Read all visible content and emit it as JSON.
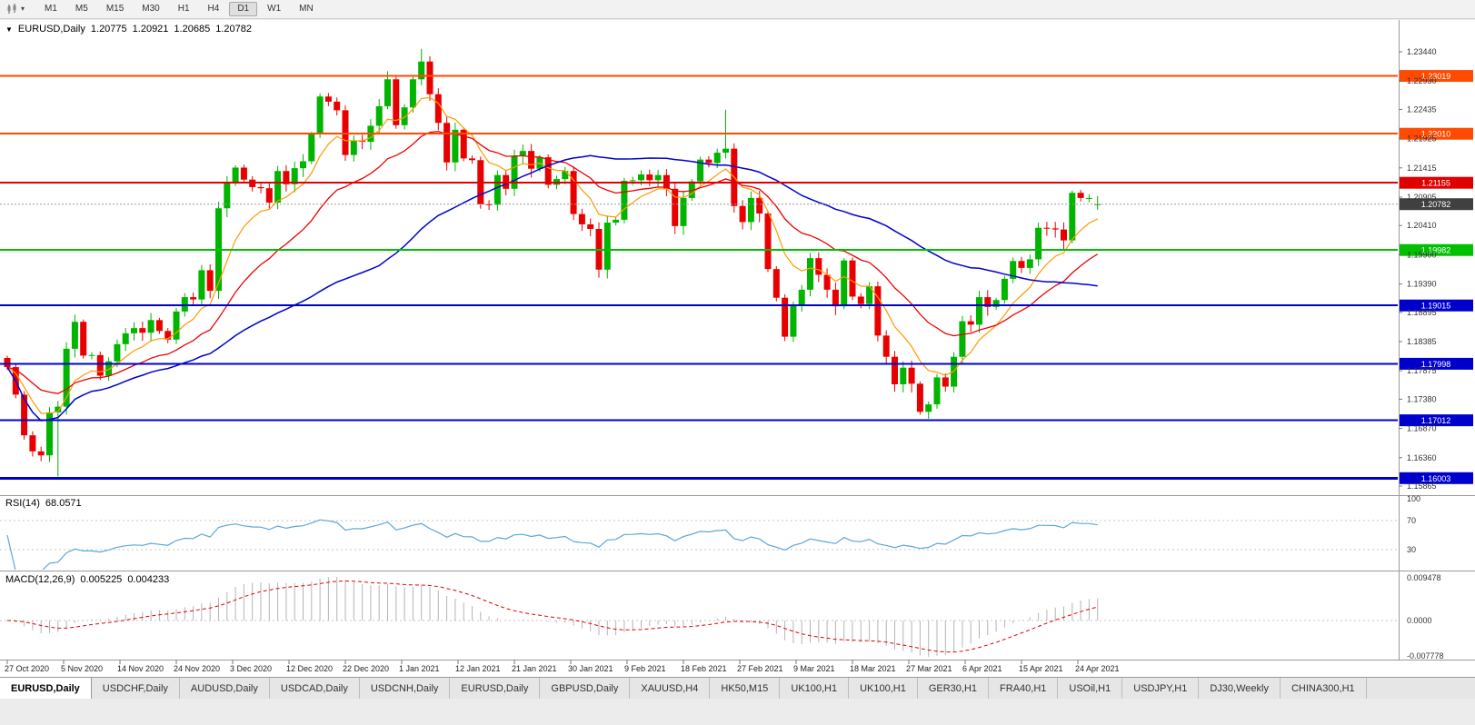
{
  "toolbar": {
    "timeframes": [
      "M1",
      "M5",
      "M15",
      "M30",
      "H1",
      "H4",
      "D1",
      "W1",
      "MN"
    ],
    "active_timeframe": "D1"
  },
  "icons": {
    "collapse": "▼",
    "caret": "▾"
  },
  "chart": {
    "symbol_period": "EURUSD,Daily",
    "open": "1.20775",
    "high": "1.20921",
    "low": "1.20685",
    "close": "1.20782"
  },
  "indicators": {
    "rsi": {
      "label": "RSI(14)",
      "value": "68.0571",
      "axis": [
        "100",
        "70",
        "30"
      ],
      "levels": [
        70,
        30
      ],
      "line_color": "#5ba7d9"
    },
    "macd": {
      "label": "MACD(12,26,9)",
      "value_main": "0.005225",
      "value_signal": "0.004233",
      "axis_top": "0.009478",
      "axis_zero": "0.0000",
      "axis_bottom": "-0.007778",
      "histogram_color": "#b4b4b4",
      "signal_color": "#e00000"
    }
  },
  "chart_data": {
    "type": "candlestick",
    "title": "EURUSD Daily",
    "symbol": "EURUSD",
    "timeframe": "Daily",
    "ylim": [
      1.15865,
      1.2344
    ],
    "grid": false,
    "price_axis": {
      "ticks": [
        "1.23440",
        "1.22930",
        "1.22435",
        "1.21925",
        "1.21415",
        "1.20905",
        "1.20410",
        "1.19900",
        "1.19390",
        "1.18895",
        "1.18385",
        "1.17875",
        "1.17380",
        "1.16870",
        "1.16360",
        "1.15865"
      ],
      "current_label": "1.20782",
      "current_value": 1.20782,
      "current_color": "#404040"
    },
    "levels": [
      {
        "label": "1.23019",
        "value": 1.23019,
        "color": "#ff4a00",
        "width": 2
      },
      {
        "label": "1.22010",
        "value": 1.2201,
        "color": "#ff4a00",
        "width": 2
      },
      {
        "label": "1.21155",
        "value": 1.21155,
        "color": "#e00000",
        "width": 2
      },
      {
        "label": "1.19982",
        "value": 1.19982,
        "color": "#00c000",
        "width": 2
      },
      {
        "label": "1.19015",
        "value": 1.19015,
        "color": "#0000cd",
        "width": 2
      },
      {
        "label": "1.17998",
        "value": 1.17998,
        "color": "#0000cd",
        "width": 2
      },
      {
        "label": "1.17012",
        "value": 1.17012,
        "color": "#0000cd",
        "width": 2
      },
      {
        "label": "1.16003",
        "value": 1.16003,
        "color": "#0000cd",
        "width": 3
      }
    ],
    "colors": {
      "up": "#00b400",
      "down": "#e80000"
    },
    "moving_averages": [
      {
        "period": 8,
        "type": "ema",
        "color": "#ff9a00",
        "width": 1.2
      },
      {
        "period": 20,
        "type": "ema",
        "color": "#ee0000",
        "width": 1.3
      },
      {
        "period": 45,
        "type": "sma",
        "color": "#0000cc",
        "width": 1.5
      }
    ],
    "candles": {
      "first_open": 1.181,
      "closes": [
        1.1794,
        1.1746,
        1.1675,
        1.1647,
        1.164,
        1.1715,
        1.1725,
        1.1826,
        1.1873,
        1.1814,
        1.1815,
        1.1779,
        1.1804,
        1.1834,
        1.1853,
        1.1862,
        1.1854,
        1.1876,
        1.1857,
        1.1842,
        1.1891,
        1.1916,
        1.1912,
        1.1963,
        1.1927,
        1.2071,
        1.2115,
        1.2142,
        1.2121,
        1.2108,
        1.2106,
        1.2081,
        1.2136,
        1.2113,
        1.2141,
        1.2153,
        1.22,
        1.2266,
        1.2257,
        1.2242,
        1.2164,
        1.2189,
        1.2187,
        1.2215,
        1.2249,
        1.2296,
        1.2216,
        1.2247,
        1.2296,
        1.2327,
        1.227,
        1.222,
        1.2151,
        1.2208,
        1.2158,
        1.2155,
        1.2078,
        1.2077,
        1.2129,
        1.2105,
        1.2163,
        1.2171,
        1.214,
        1.216,
        1.2112,
        1.2122,
        1.2136,
        1.2061,
        1.2043,
        1.2035,
        1.1964,
        1.2046,
        1.2051,
        1.2119,
        1.212,
        1.213,
        1.212,
        1.2129,
        1.2105,
        1.204,
        1.2089,
        1.2118,
        1.2156,
        1.215,
        1.2168,
        1.2175,
        1.2075,
        1.2047,
        1.2089,
        1.2062,
        1.1965,
        1.1915,
        1.1847,
        1.1901,
        1.1929,
        1.1984,
        1.1955,
        1.1929,
        1.19,
        1.198,
        1.1917,
        1.1904,
        1.1935,
        1.1849,
        1.1812,
        1.1764,
        1.1793,
        1.1765,
        1.1716,
        1.1729,
        1.1776,
        1.176,
        1.1812,
        1.1874,
        1.1868,
        1.1916,
        1.1899,
        1.1911,
        1.1948,
        1.1979,
        1.1967,
        1.1982,
        1.2037,
        1.2036,
        1.2034,
        1.2015,
        1.2098,
        1.2089,
        1.2089,
        1.20782
      ],
      "overrides": {
        "6": {
          "l": 1.1603
        },
        "45": {
          "h": 1.231
        },
        "49": {
          "h": 1.2349
        },
        "85": {
          "h": 1.2243
        },
        "109": {
          "l": 1.1704
        },
        "129": {
          "o": 1.20775,
          "h": 1.20921,
          "l": 1.20685,
          "c": 1.20782
        }
      }
    },
    "date_axis": [
      "27 Oct 2020",
      "5 Nov 2020",
      "14 Nov 2020",
      "24 Nov 2020",
      "3 Dec 2020",
      "12 Dec 2020",
      "22 Dec 2020",
      "1 Jan 2021",
      "12 Jan 2021",
      "21 Jan 2021",
      "30 Jan 2021",
      "9 Feb 2021",
      "18 Feb 2021",
      "27 Feb 2021",
      "9 Mar 2021",
      "18 Mar 2021",
      "27 Mar 2021",
      "6 Apr 2021",
      "15 Apr 2021",
      "24 Apr 2021"
    ]
  },
  "tabs": [
    {
      "label": "EURUSD,Daily",
      "active": true
    },
    {
      "label": "USDCHF,Daily",
      "active": false
    },
    {
      "label": "AUDUSD,Daily",
      "active": false
    },
    {
      "label": "USDCAD,Daily",
      "active": false
    },
    {
      "label": "USDCNH,Daily",
      "active": false
    },
    {
      "label": "EURUSD,Daily",
      "active": false
    },
    {
      "label": "GBPUSD,Daily",
      "active": false
    },
    {
      "label": "XAUUSD,H4",
      "active": false
    },
    {
      "label": "HK50,M15",
      "active": false
    },
    {
      "label": "UK100,H1",
      "active": false
    },
    {
      "label": "UK100,H1",
      "active": false
    },
    {
      "label": "GER30,H1",
      "active": false
    },
    {
      "label": "FRA40,H1",
      "active": false
    },
    {
      "label": "USOil,H1",
      "active": false
    },
    {
      "label": "USDJPY,H1",
      "active": false
    },
    {
      "label": "DJ30,Weekly",
      "active": false
    },
    {
      "label": "CHINA300,H1",
      "active": false
    }
  ]
}
